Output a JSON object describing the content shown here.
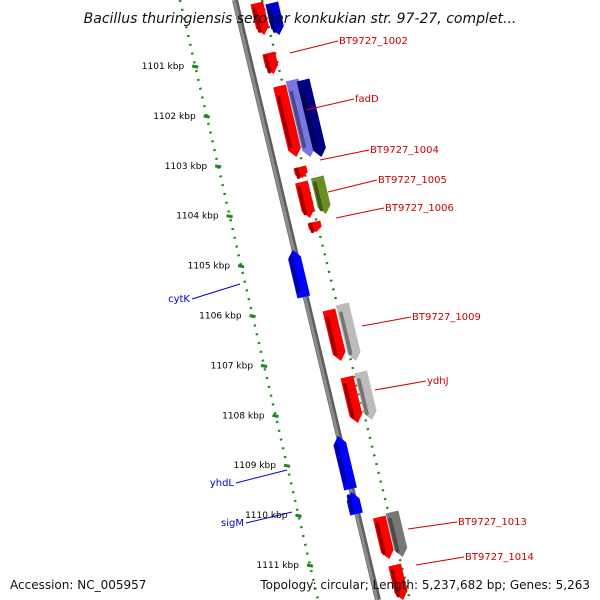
{
  "title": "Bacillus thuringiensis serovar konkukian str. 97-27, complet...",
  "footer": {
    "accession": "Accession: NC_005957",
    "topology": "Topology: circular; Length: 5,237,682 bp; Genes: 5,263"
  },
  "colors": {
    "backbone": "#8c8c8c",
    "tick_ring": "#1a8a1a",
    "forward_label": "#cc0000",
    "reverse_label": "#0000cc"
  },
  "ticks": [
    "1101 kbp",
    "1102 kbp",
    "1103 kbp",
    "1104 kbp",
    "1105 kbp",
    "1106 kbp",
    "1107 kbp",
    "1108 kbp",
    "1109 kbp",
    "1110 kbp",
    "1111 kbp"
  ],
  "forward_labels": [
    "BT9727_1002",
    "fadD",
    "BT9727_1004",
    "BT9727_1005",
    "BT9727_1006",
    "BT9727_1009",
    "ydhJ",
    "BT9727_1013",
    "BT9727_1014"
  ],
  "reverse_labels": [
    "cytK",
    "yhdL",
    "sigM"
  ],
  "features": [
    {
      "strand": "+",
      "color": "#ff0000"
    },
    {
      "strand": "+",
      "color": "#0000cc"
    },
    {
      "strand": "+",
      "color": "#ff0000"
    },
    {
      "strand": "+",
      "color": "#ff0000"
    },
    {
      "strand": "+",
      "color": "#7777dd"
    },
    {
      "strand": "+",
      "color": "#000080"
    },
    {
      "strand": "+",
      "color": "#ff0000"
    },
    {
      "strand": "+",
      "color": "#ff0000"
    },
    {
      "strand": "+",
      "color": "#6b8e23"
    },
    {
      "strand": "+",
      "color": "#ff0000"
    },
    {
      "strand": "-",
      "color": "#0000ff"
    },
    {
      "strand": "+",
      "color": "#ff0000"
    },
    {
      "strand": "+",
      "color": "#bbbbbb"
    },
    {
      "strand": "+",
      "color": "#ff0000"
    },
    {
      "strand": "+",
      "color": "#bbbbbb"
    },
    {
      "strand": "-",
      "color": "#0000ff"
    },
    {
      "strand": "-",
      "color": "#0000ff"
    },
    {
      "strand": "+",
      "color": "#ff0000"
    },
    {
      "strand": "+",
      "color": "#777777"
    },
    {
      "strand": "+",
      "color": "#ff0000"
    }
  ]
}
